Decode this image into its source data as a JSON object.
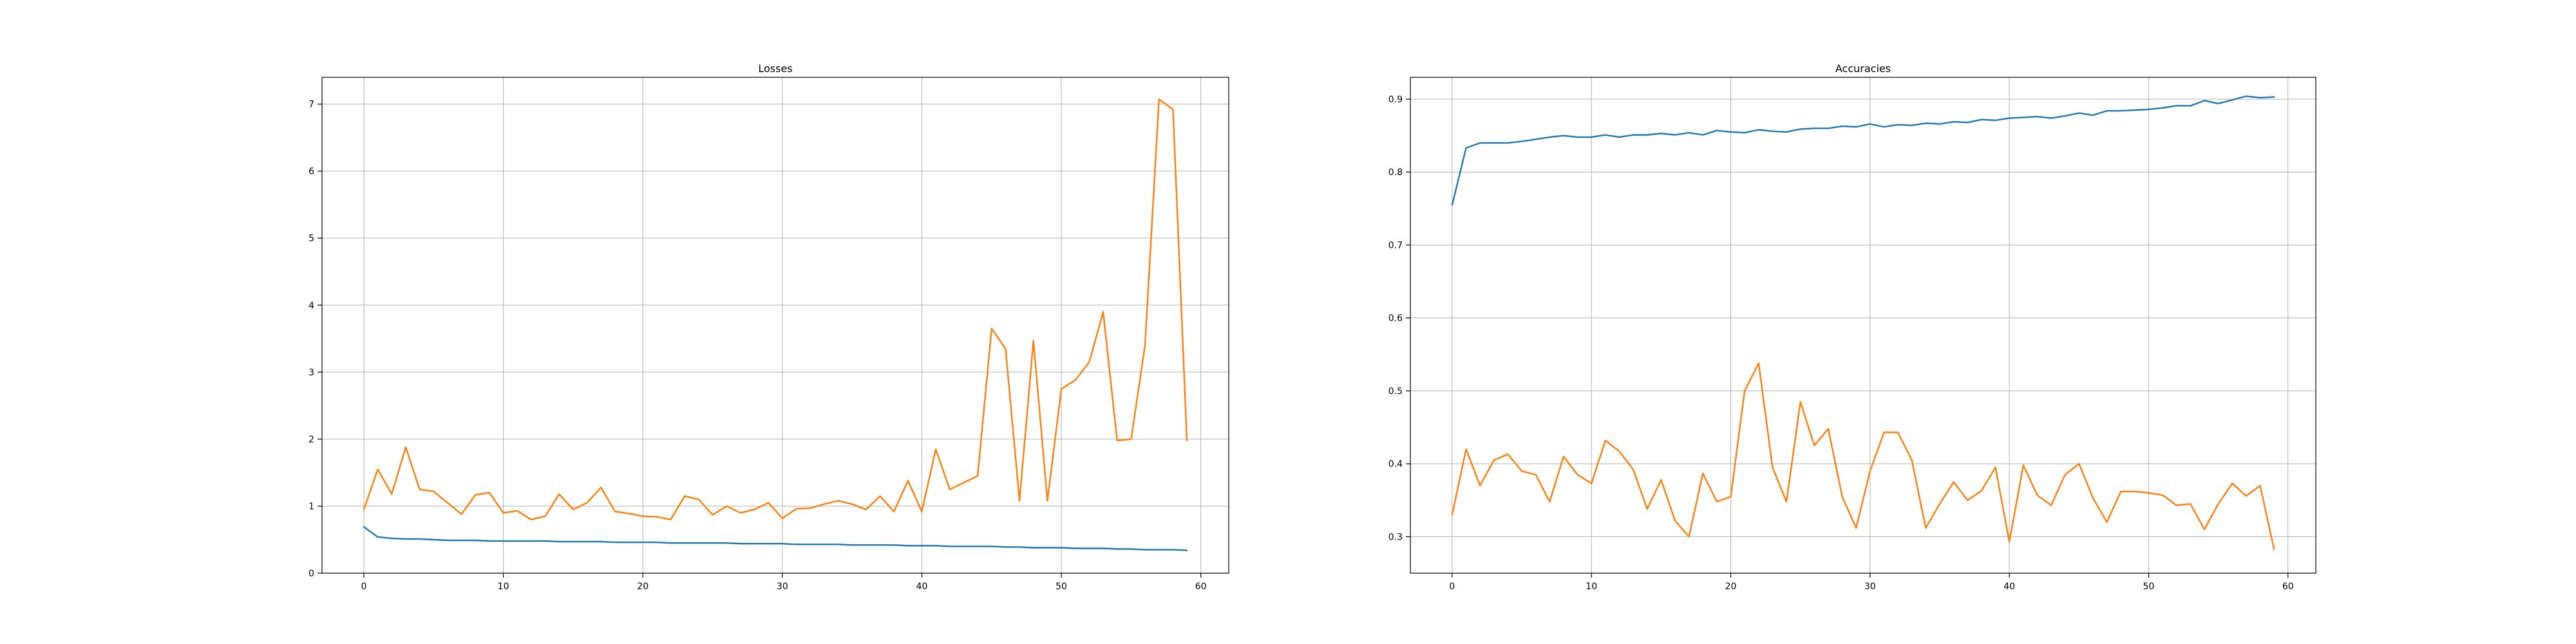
{
  "chart_data": [
    {
      "type": "line",
      "title": "Losses",
      "xlabel": "",
      "ylabel": "",
      "xlim": [
        -3,
        62
      ],
      "ylim": [
        0,
        7.4
      ],
      "xticks": [
        0,
        10,
        20,
        30,
        40,
        50,
        60
      ],
      "yticks": [
        0,
        1,
        2,
        3,
        4,
        5,
        6,
        7
      ],
      "grid": true,
      "series": [
        {
          "color": "#1f77b4",
          "x": [
            0,
            1,
            2,
            3,
            4,
            5,
            6,
            7,
            8,
            9,
            10,
            11,
            12,
            13,
            14,
            15,
            16,
            17,
            18,
            19,
            20,
            21,
            22,
            23,
            24,
            25,
            26,
            27,
            28,
            29,
            30,
            31,
            32,
            33,
            34,
            35,
            36,
            37,
            38,
            39,
            40,
            41,
            42,
            43,
            44,
            45,
            46,
            47,
            48,
            49,
            50,
            51,
            52,
            53,
            54,
            55,
            56,
            57,
            58,
            59
          ],
          "y": [
            0.69,
            0.54,
            0.52,
            0.51,
            0.51,
            0.5,
            0.49,
            0.49,
            0.49,
            0.48,
            0.48,
            0.48,
            0.48,
            0.48,
            0.47,
            0.47,
            0.47,
            0.47,
            0.46,
            0.46,
            0.46,
            0.46,
            0.45,
            0.45,
            0.45,
            0.45,
            0.45,
            0.44,
            0.44,
            0.44,
            0.44,
            0.43,
            0.43,
            0.43,
            0.43,
            0.42,
            0.42,
            0.42,
            0.42,
            0.41,
            0.41,
            0.41,
            0.4,
            0.4,
            0.4,
            0.4,
            0.39,
            0.39,
            0.38,
            0.38,
            0.38,
            0.37,
            0.37,
            0.37,
            0.36,
            0.36,
            0.35,
            0.35,
            0.35,
            0.34
          ]
        },
        {
          "color": "#ff7f0e",
          "x": [
            0,
            1,
            2,
            3,
            4,
            5,
            6,
            7,
            8,
            9,
            10,
            11,
            12,
            13,
            14,
            15,
            16,
            17,
            18,
            19,
            20,
            21,
            22,
            23,
            24,
            25,
            26,
            27,
            28,
            29,
            30,
            31,
            32,
            33,
            34,
            35,
            36,
            37,
            38,
            39,
            40,
            41,
            42,
            43,
            44,
            45,
            46,
            47,
            48,
            49,
            50,
            51,
            52,
            53,
            54,
            55,
            56,
            57,
            58,
            59
          ],
          "y": [
            0.95,
            1.55,
            1.18,
            1.88,
            1.25,
            1.22,
            1.05,
            0.88,
            1.17,
            1.2,
            0.9,
            0.93,
            0.8,
            0.85,
            1.18,
            0.95,
            1.05,
            1.28,
            0.92,
            0.89,
            0.85,
            0.84,
            0.8,
            1.15,
            1.1,
            0.87,
            1.0,
            0.9,
            0.95,
            1.05,
            0.82,
            0.96,
            0.97,
            1.03,
            1.08,
            1.03,
            0.95,
            1.15,
            0.92,
            1.38,
            0.92,
            1.85,
            1.25,
            1.35,
            1.45,
            3.65,
            3.35,
            1.08,
            3.47,
            1.08,
            2.75,
            2.88,
            3.15,
            3.9,
            1.98,
            2.0,
            3.4,
            7.07,
            6.92,
            1.98
          ]
        }
      ]
    },
    {
      "type": "line",
      "title": "Accuracies",
      "xlabel": "",
      "ylabel": "",
      "xlim": [
        -3,
        62
      ],
      "ylim": [
        0.25,
        0.93
      ],
      "xticks": [
        0,
        10,
        20,
        30,
        40,
        50,
        60
      ],
      "yticks": [
        0.3,
        0.4,
        0.5,
        0.6,
        0.7,
        0.8,
        0.9
      ],
      "grid": true,
      "series": [
        {
          "color": "#1f77b4",
          "x": [
            0,
            1,
            2,
            3,
            4,
            5,
            6,
            7,
            8,
            9,
            10,
            11,
            12,
            13,
            14,
            15,
            16,
            17,
            18,
            19,
            20,
            21,
            22,
            23,
            24,
            25,
            26,
            27,
            28,
            29,
            30,
            31,
            32,
            33,
            34,
            35,
            36,
            37,
            38,
            39,
            40,
            41,
            42,
            43,
            44,
            45,
            46,
            47,
            48,
            49,
            50,
            51,
            52,
            53,
            54,
            55,
            56,
            57,
            58,
            59
          ],
          "y": [
            0.755,
            0.833,
            0.84,
            0.84,
            0.84,
            0.842,
            0.845,
            0.848,
            0.85,
            0.848,
            0.848,
            0.851,
            0.848,
            0.851,
            0.851,
            0.853,
            0.851,
            0.854,
            0.851,
            0.857,
            0.855,
            0.854,
            0.858,
            0.856,
            0.855,
            0.859,
            0.86,
            0.86,
            0.863,
            0.862,
            0.866,
            0.862,
            0.865,
            0.864,
            0.867,
            0.866,
            0.869,
            0.868,
            0.872,
            0.871,
            0.874,
            0.875,
            0.876,
            0.874,
            0.877,
            0.881,
            0.878,
            0.884,
            0.884,
            0.885,
            0.886,
            0.888,
            0.891,
            0.891,
            0.898,
            0.894,
            0.899,
            0.904,
            0.902,
            0.903
          ]
        },
        {
          "color": "#ff7f0e",
          "x": [
            0,
            1,
            2,
            3,
            4,
            5,
            6,
            7,
            8,
            9,
            10,
            11,
            12,
            13,
            14,
            15,
            16,
            17,
            18,
            19,
            20,
            21,
            22,
            23,
            24,
            25,
            26,
            27,
            28,
            29,
            30,
            31,
            32,
            33,
            34,
            35,
            36,
            37,
            38,
            39,
            40,
            41,
            42,
            43,
            44,
            45,
            46,
            47,
            48,
            49,
            50,
            51,
            52,
            53,
            54,
            55,
            56,
            57,
            58,
            59
          ],
          "y": [
            0.33,
            0.42,
            0.37,
            0.405,
            0.413,
            0.39,
            0.385,
            0.348,
            0.41,
            0.385,
            0.373,
            0.432,
            0.417,
            0.392,
            0.338,
            0.378,
            0.322,
            0.3,
            0.387,
            0.348,
            0.355,
            0.5,
            0.538,
            0.395,
            0.348,
            0.485,
            0.425,
            0.448,
            0.355,
            0.312,
            0.39,
            0.443,
            0.443,
            0.405,
            0.312,
            0.345,
            0.375,
            0.35,
            0.363,
            0.395,
            0.293,
            0.398,
            0.357,
            0.343,
            0.385,
            0.4,
            0.353,
            0.32,
            0.362,
            0.362,
            0.36,
            0.357,
            0.343,
            0.345,
            0.31,
            0.345,
            0.373,
            0.356,
            0.37,
            0.283
          ]
        }
      ]
    }
  ]
}
